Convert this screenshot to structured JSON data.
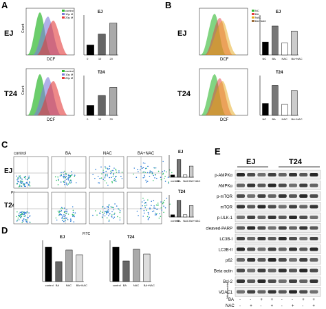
{
  "panels": {
    "A": "A",
    "B": "B",
    "C": "C",
    "D": "D",
    "E": "E"
  },
  "cells": {
    "EJ": "EJ",
    "T24": "T24"
  },
  "axes": {
    "count": "Count",
    "dcf": "DCF",
    "pi": "PI",
    "fitc": "FITC"
  },
  "legend_A": [
    "control",
    "10μ M",
    "20μ M"
  ],
  "legend_B": [
    "NC",
    "BA",
    "NAC",
    "BA+NAC"
  ],
  "bar_titles": {
    "EJ": "EJ",
    "T24": "T24"
  },
  "colors": {
    "ctrl": "#2eb82e",
    "dose10": "#7c7cd8",
    "dose20": "#e33b3b",
    "nac": "#e6a817",
    "banac": "#9b6b3a"
  },
  "flow_labels": [
    "control",
    "BA",
    "NAC",
    "BA+NAC"
  ],
  "western": {
    "header": [
      "EJ",
      "T24"
    ],
    "proteins": [
      "p-AMPKα",
      "AMPKα",
      "p-mTOR",
      "mTOR",
      "p-ULK-1",
      "cleaved-PARP",
      "LC3B-I",
      "LC3B-II",
      "p62",
      "Beta-actin",
      "Bcl-2",
      "VDAC1"
    ],
    "side_label": "Mitochondria",
    "ba_row": {
      "label": "BA",
      "signs": [
        "-",
        "-",
        "+",
        "+",
        "-",
        "-",
        "+",
        "+"
      ]
    },
    "nac_row": {
      "label": "NAC",
      "signs": [
        "-",
        "+",
        "-",
        "+",
        "-",
        "+",
        "-",
        "+"
      ]
    }
  },
  "chart_data": [
    {
      "panel": "A",
      "title": "EJ",
      "type": "bar",
      "categories": [
        "0",
        "10",
        "20"
      ],
      "values": [
        1,
        2.1,
        3.2
      ],
      "ylim": [
        0,
        4
      ]
    },
    {
      "panel": "A",
      "title": "T24",
      "type": "bar",
      "categories": [
        "0",
        "10",
        "20"
      ],
      "values": [
        1,
        2.0,
        2.8
      ],
      "ylim": [
        0,
        4
      ]
    },
    {
      "panel": "B",
      "title": "EJ",
      "type": "bar",
      "categories": [
        "NC",
        "BA",
        "NAC",
        "BA+NAC"
      ],
      "values": [
        1.3,
        2.9,
        1.2,
        2.4
      ],
      "ylim": [
        0,
        4
      ]
    },
    {
      "panel": "B",
      "title": "T24",
      "type": "bar",
      "categories": [
        "NC",
        "BA",
        "NAC",
        "BA+NAC"
      ],
      "values": [
        1.2,
        3.0,
        1.1,
        2.5
      ],
      "ylim": [
        0,
        4
      ]
    },
    {
      "panel": "C",
      "title": "EJ",
      "type": "bar",
      "categories": [
        "control",
        "BA",
        "NAC",
        "BA+NAC"
      ],
      "values": [
        5,
        40,
        5,
        25
      ],
      "ylim": [
        0,
        50
      ]
    },
    {
      "panel": "C",
      "title": "T24",
      "type": "bar",
      "categories": [
        "control",
        "BA",
        "NAC",
        "BA+NAC"
      ],
      "values": [
        5,
        38,
        5,
        26
      ],
      "ylim": [
        0,
        50
      ]
    },
    {
      "panel": "D",
      "title": "EJ",
      "type": "bar",
      "categories": [
        "control",
        "BA",
        "NAC",
        "BA+NAC"
      ],
      "values": [
        100,
        58,
        92,
        78
      ],
      "ylim": [
        0,
        120
      ]
    },
    {
      "panel": "D",
      "title": "T24",
      "type": "bar",
      "categories": [
        "control",
        "BA",
        "NAC",
        "BA+NAC"
      ],
      "values": [
        100,
        60,
        94,
        80
      ],
      "ylim": [
        0,
        120
      ]
    }
  ]
}
